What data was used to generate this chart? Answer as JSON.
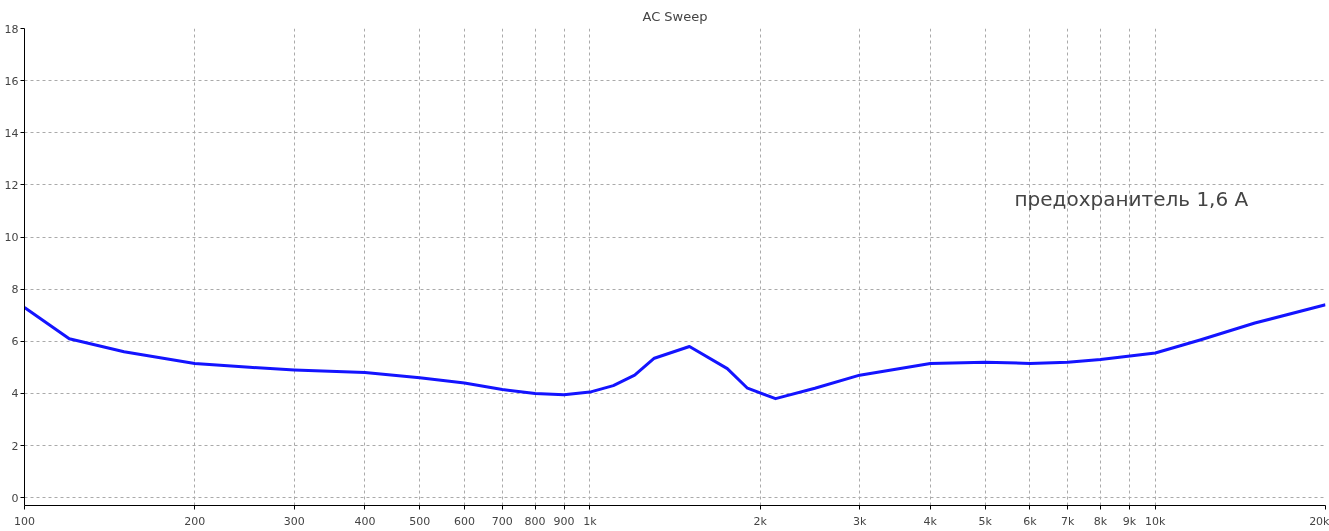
{
  "chart_data": {
    "type": "line",
    "title": "AC Sweep",
    "log": "x",
    "grid": true,
    "line_style": "solid",
    "marker": "none",
    "x": [
      100,
      120,
      150,
      200,
      250,
      300,
      400,
      500,
      600,
      700,
      800,
      900,
      1000,
      1100,
      1200,
      1300,
      1500,
      1750,
      1900,
      2130,
      2500,
      3000,
      4000,
      5000,
      6000,
      7000,
      8000,
      10000,
      12000,
      15000,
      20000
    ],
    "series": [
      {
        "color": "#1414ff",
        "values": [
          7.3,
          6.1,
          5.6,
          5.15,
          5.0,
          4.9,
          4.8,
          4.6,
          4.4,
          4.15,
          4.0,
          3.95,
          4.05,
          4.3,
          4.7,
          5.35,
          5.8,
          4.95,
          4.2,
          3.8,
          4.2,
          4.7,
          5.15,
          5.2,
          5.15,
          5.2,
          5.3,
          5.55,
          6.05,
          6.7,
          7.4
        ]
      }
    ],
    "xlim": [
      100,
      20000
    ],
    "ylim": [
      -0.3,
      18
    ],
    "xticks": [
      100,
      200,
      300,
      400,
      500,
      600,
      700,
      800,
      900,
      {
        "value": 1000,
        "label": "1k"
      },
      {
        "value": 2000,
        "label": "2k"
      },
      {
        "value": 3000,
        "label": "3k"
      },
      {
        "value": 4000,
        "label": "4k"
      },
      {
        "value": 5000,
        "label": "5k"
      },
      {
        "value": 6000,
        "label": "6k"
      },
      {
        "value": 7000,
        "label": "7k"
      },
      {
        "value": 8000,
        "label": "8k"
      },
      {
        "value": 9000,
        "label": "9k"
      },
      {
        "value": 10000,
        "label": "10k"
      },
      {
        "value": 20000,
        "label": "20k"
      }
    ],
    "yticks": [
      0,
      2,
      4,
      6,
      8,
      10,
      12,
      14,
      16,
      18
    ],
    "annotations": [
      "предохранитель 1,6 A"
    ]
  }
}
